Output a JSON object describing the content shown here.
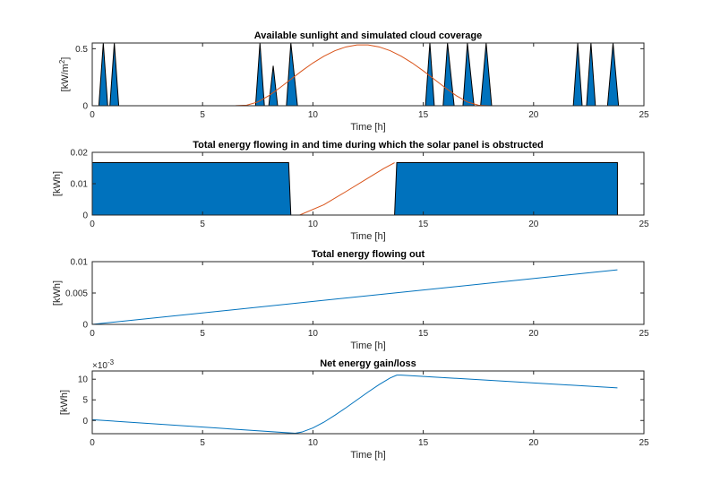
{
  "colors": {
    "area": "#0072BD",
    "line_blue": "#0072BD",
    "line_orange": "#D95319",
    "axis": "#262626",
    "background": "#ffffff"
  },
  "chart_data": [
    {
      "type": "area",
      "title": "Available sunlight and simulated cloud coverage",
      "xlabel": "Time [h]",
      "ylabel": "[kW/m",
      "ylabel_sup": "2",
      "ylabel_end": "]",
      "xlim": [
        0,
        25
      ],
      "ylim": [
        0,
        0.55
      ],
      "xticks": [
        0,
        5,
        10,
        15,
        20,
        25
      ],
      "xtick_labels": [
        "0",
        "5",
        "10",
        "15",
        "20",
        "25"
      ],
      "yticks": [
        0,
        0.5
      ],
      "ytick_labels": [
        "0",
        "0.5"
      ],
      "series": [
        {
          "kind": "area",
          "color": "#0072BD",
          "x": [
            0,
            0.3,
            0.5,
            0.7,
            0.8,
            1.0,
            1.2,
            7.4,
            7.6,
            7.8,
            8.0,
            8.2,
            8.4,
            8.8,
            9.0,
            9.3,
            15.1,
            15.3,
            15.5,
            15.9,
            16.1,
            16.4,
            16.8,
            17.0,
            17.3,
            17.6,
            17.85,
            18.1,
            21.8,
            22.0,
            22.2,
            22.4,
            22.6,
            22.8,
            23.35,
            23.6,
            23.85,
            24
          ],
          "y": [
            0,
            0,
            0.55,
            0,
            0,
            0.55,
            0,
            0,
            0.55,
            0,
            0,
            0.35,
            0,
            0,
            0.55,
            0,
            0,
            0.55,
            0,
            0,
            0.55,
            0,
            0,
            0.55,
            0,
            0,
            0.55,
            0,
            0,
            0.55,
            0,
            0,
            0.55,
            0,
            0,
            0.55,
            0,
            0
          ]
        },
        {
          "kind": "line",
          "color": "#D95319",
          "x": [
            0,
            6,
            6.5,
            7,
            7.5,
            8,
            8.5,
            9,
            9.5,
            10,
            10.5,
            11,
            11.5,
            12,
            12.5,
            13,
            13.5,
            14,
            14.5,
            15,
            15.5,
            16,
            16.5,
            17,
            17.5,
            18,
            24
          ],
          "y": [
            0,
            0,
            0.001,
            0.005,
            0.033,
            0.088,
            0.157,
            0.232,
            0.306,
            0.375,
            0.435,
            0.483,
            0.516,
            0.533,
            0.533,
            0.516,
            0.483,
            0.435,
            0.375,
            0.306,
            0.232,
            0.157,
            0.088,
            0.033,
            0.005,
            0,
            0
          ]
        }
      ]
    },
    {
      "type": "area",
      "title": "Total energy flowing in and time during which the solar panel is obstructed",
      "xlabel": "Time [h]",
      "ylabel": "[kWh]",
      "xlim": [
        0,
        25
      ],
      "ylim": [
        0,
        0.02
      ],
      "xticks": [
        0,
        5,
        10,
        15,
        20,
        25
      ],
      "xtick_labels": [
        "0",
        "5",
        "10",
        "15",
        "20",
        "25"
      ],
      "yticks": [
        0,
        0.01,
        0.02
      ],
      "ytick_labels": [
        "0",
        "0.01",
        "0.02"
      ],
      "series": [
        {
          "kind": "area",
          "color": "#0072BD",
          "x": [
            0,
            0,
            8.9,
            9.0,
            13.7,
            13.8,
            23.8,
            23.8
          ],
          "y": [
            0,
            0.0167,
            0.0167,
            0,
            0,
            0.0167,
            0.0167,
            0
          ]
        },
        {
          "kind": "line",
          "color": "#D95319",
          "x": [
            9.4,
            10.5,
            11.5,
            12.5,
            13.2,
            13.7
          ],
          "y": [
            0,
            0.0033,
            0.0075,
            0.0118,
            0.0148,
            0.0167
          ]
        }
      ]
    },
    {
      "type": "line",
      "title": "Total energy flowing out",
      "xlabel": "Time [h]",
      "ylabel": "[kWh]",
      "xlim": [
        0,
        25
      ],
      "ylim": [
        0,
        0.01
      ],
      "xticks": [
        0,
        5,
        10,
        15,
        20,
        25
      ],
      "xtick_labels": [
        "0",
        "5",
        "10",
        "15",
        "20",
        "25"
      ],
      "yticks": [
        0,
        0.005,
        0.01
      ],
      "ytick_labels": [
        "0",
        "0.005",
        "0.01"
      ],
      "series": [
        {
          "kind": "line",
          "color": "#0072BD",
          "x": [
            0,
            23.8
          ],
          "y": [
            0,
            0.0087
          ]
        }
      ]
    },
    {
      "type": "line",
      "title": "Net energy gain/loss",
      "xlabel": "Time [h]",
      "ylabel": "[kWh]",
      "exponent": "×10",
      "exponent_sup": "-3",
      "xlim": [
        0,
        25
      ],
      "ylim": [
        -3.2,
        12
      ],
      "xticks": [
        0,
        5,
        10,
        15,
        20,
        25
      ],
      "xtick_labels": [
        "0",
        "5",
        "10",
        "15",
        "20",
        "25"
      ],
      "yticks": [
        0,
        5,
        10
      ],
      "ytick_labels": [
        "0",
        "5",
        "10"
      ],
      "series": [
        {
          "kind": "line",
          "color": "#0072BD",
          "x": [
            0,
            9.2,
            9.5,
            10,
            10.5,
            11,
            11.5,
            12,
            12.5,
            13,
            13.5,
            13.8,
            14,
            23.8
          ],
          "y": [
            0.2,
            -3.1,
            -2.8,
            -1.8,
            -0.4,
            1.3,
            3.1,
            5.0,
            6.9,
            8.7,
            10.3,
            11.0,
            11.0,
            7.9
          ]
        }
      ]
    }
  ]
}
